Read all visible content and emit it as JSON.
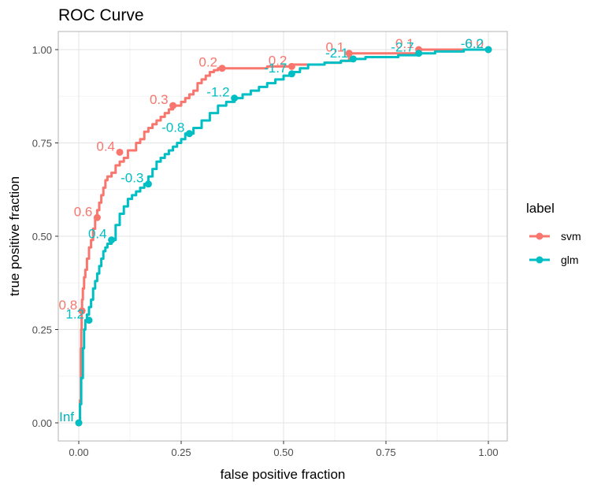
{
  "chart_data": {
    "type": "line",
    "title": "ROC Curve",
    "xlabel": "false positive fraction",
    "ylabel": "true positive fraction",
    "xlim": [
      0,
      1
    ],
    "ylim": [
      0,
      1
    ],
    "xticks": [
      "0.00",
      "0.25",
      "0.50",
      "0.75",
      "1.00"
    ],
    "yticks": [
      "0.00",
      "0.25",
      "0.50",
      "0.75",
      "1.00"
    ],
    "grid": true,
    "legend": {
      "title": "label",
      "position": "right"
    },
    "series": [
      {
        "name": "svm",
        "color": "#F8766D",
        "x": [
          0.0,
          0.003,
          0.005,
          0.006,
          0.007,
          0.008,
          0.01,
          0.013,
          0.016,
          0.02,
          0.025,
          0.03,
          0.035,
          0.04,
          0.045,
          0.05,
          0.055,
          0.06,
          0.065,
          0.07,
          0.08,
          0.09,
          0.1,
          0.11,
          0.12,
          0.13,
          0.14,
          0.15,
          0.16,
          0.17,
          0.18,
          0.19,
          0.2,
          0.21,
          0.22,
          0.23,
          0.24,
          0.25,
          0.26,
          0.27,
          0.28,
          0.29,
          0.3,
          0.31,
          0.32,
          0.33,
          0.34,
          0.35,
          0.38,
          0.42,
          0.46,
          0.5,
          0.52,
          0.56,
          0.6,
          0.64,
          0.66,
          0.7,
          0.74,
          0.78,
          0.83,
          0.87,
          0.9,
          0.94,
          0.97,
          1.0
        ],
        "y": [
          0.0,
          0.06,
          0.2,
          0.25,
          0.3,
          0.33,
          0.36,
          0.39,
          0.41,
          0.44,
          0.47,
          0.49,
          0.52,
          0.55,
          0.57,
          0.59,
          0.61,
          0.63,
          0.65,
          0.66,
          0.67,
          0.69,
          0.7,
          0.71,
          0.73,
          0.73,
          0.75,
          0.76,
          0.78,
          0.79,
          0.8,
          0.81,
          0.82,
          0.83,
          0.84,
          0.85,
          0.85,
          0.86,
          0.87,
          0.88,
          0.89,
          0.91,
          0.92,
          0.93,
          0.94,
          0.945,
          0.95,
          0.95,
          0.95,
          0.95,
          0.955,
          0.955,
          0.96,
          0.96,
          0.965,
          0.97,
          0.99,
          0.99,
          0.99,
          0.99,
          1.0,
          1.0,
          1.0,
          1.0,
          1.0,
          1.0
        ],
        "cutoffs": [
          {
            "label": "Inf",
            "x": 0.0,
            "y": 0.0
          },
          {
            "label": "0.8",
            "x": 0.008,
            "y": 0.3
          },
          {
            "label": "0.6",
            "x": 0.045,
            "y": 0.55
          },
          {
            "label": "0.4",
            "x": 0.1,
            "y": 0.725
          },
          {
            "label": "0.3",
            "x": 0.23,
            "y": 0.85
          },
          {
            "label": "0.2",
            "x": 0.35,
            "y": 0.95
          },
          {
            "label": "0.2",
            "x": 0.52,
            "y": 0.955
          },
          {
            "label": "0.1",
            "x": 0.66,
            "y": 0.99
          },
          {
            "label": "0.1",
            "x": 0.83,
            "y": 1.0
          },
          {
            "label": "0.0",
            "x": 1.0,
            "y": 1.0
          }
        ]
      },
      {
        "name": "glm",
        "color": "#00BFC4",
        "x": [
          0.0,
          0.003,
          0.006,
          0.01,
          0.013,
          0.016,
          0.02,
          0.025,
          0.03,
          0.035,
          0.04,
          0.045,
          0.05,
          0.055,
          0.06,
          0.065,
          0.07,
          0.08,
          0.09,
          0.1,
          0.11,
          0.12,
          0.13,
          0.14,
          0.15,
          0.16,
          0.17,
          0.18,
          0.19,
          0.2,
          0.21,
          0.22,
          0.23,
          0.24,
          0.25,
          0.26,
          0.28,
          0.3,
          0.32,
          0.34,
          0.36,
          0.38,
          0.4,
          0.42,
          0.44,
          0.46,
          0.48,
          0.5,
          0.52,
          0.54,
          0.56,
          0.6,
          0.64,
          0.67,
          0.7,
          0.74,
          0.78,
          0.83,
          0.87,
          0.9,
          0.94,
          0.97,
          1.0
        ],
        "y": [
          0.0,
          0.05,
          0.12,
          0.2,
          0.25,
          0.275,
          0.29,
          0.31,
          0.33,
          0.36,
          0.38,
          0.4,
          0.42,
          0.44,
          0.46,
          0.47,
          0.48,
          0.49,
          0.53,
          0.56,
          0.58,
          0.6,
          0.61,
          0.62,
          0.63,
          0.64,
          0.66,
          0.68,
          0.7,
          0.71,
          0.72,
          0.73,
          0.74,
          0.75,
          0.76,
          0.775,
          0.79,
          0.81,
          0.83,
          0.85,
          0.86,
          0.87,
          0.88,
          0.89,
          0.9,
          0.91,
          0.92,
          0.93,
          0.94,
          0.95,
          0.96,
          0.965,
          0.97,
          0.975,
          0.98,
          0.98,
          0.985,
          0.99,
          0.995,
          0.995,
          1.0,
          1.0,
          1.0
        ],
        "cutoffs": [
          {
            "label": "Inf",
            "x": 0.0,
            "y": 0.0
          },
          {
            "label": "1.2",
            "x": 0.025,
            "y": 0.275
          },
          {
            "label": "0.4",
            "x": 0.08,
            "y": 0.49
          },
          {
            "label": "-0.3",
            "x": 0.17,
            "y": 0.64
          },
          {
            "label": "-0.8",
            "x": 0.27,
            "y": 0.775
          },
          {
            "label": "-1.2",
            "x": 0.38,
            "y": 0.87
          },
          {
            "label": "-1.7",
            "x": 0.52,
            "y": 0.935
          },
          {
            "label": "-2.1",
            "x": 0.67,
            "y": 0.975
          },
          {
            "label": "-2.7",
            "x": 0.83,
            "y": 0.99
          },
          {
            "label": "-6.2",
            "x": 1.0,
            "y": 1.0
          }
        ]
      }
    ]
  }
}
